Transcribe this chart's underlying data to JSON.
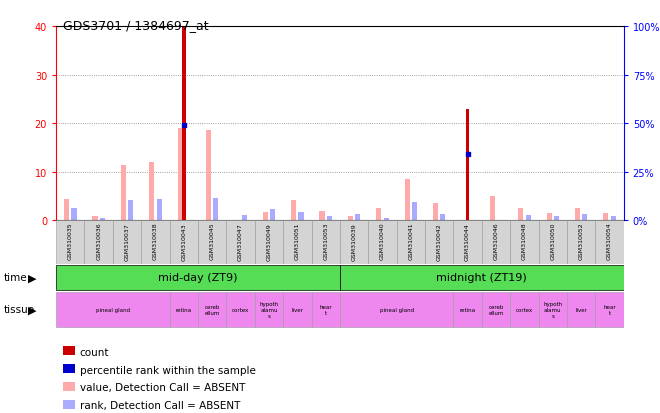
{
  "title": "GDS3701 / 1384697_at",
  "samples": [
    "GSM310035",
    "GSM310036",
    "GSM310037",
    "GSM310038",
    "GSM310043",
    "GSM310045",
    "GSM310047",
    "GSM310049",
    "GSM310051",
    "GSM310053",
    "GSM310039",
    "GSM310040",
    "GSM310041",
    "GSM310042",
    "GSM310044",
    "GSM310046",
    "GSM310048",
    "GSM310050",
    "GSM310052",
    "GSM310054"
  ],
  "count": [
    0,
    0,
    0,
    0,
    40,
    0,
    0,
    0,
    0,
    0,
    0,
    0,
    0,
    0,
    23,
    0,
    0,
    0,
    0,
    0
  ],
  "percentile_rank": [
    0,
    0,
    0,
    0,
    49,
    0,
    0,
    0,
    0,
    0,
    0,
    0,
    0,
    0,
    34,
    0,
    0,
    0,
    0,
    0
  ],
  "value_absent": [
    4.5,
    1.0,
    11.5,
    12.0,
    19.0,
    18.5,
    0,
    1.8,
    4.2,
    2.0,
    1.0,
    2.5,
    8.5,
    3.5,
    0,
    5.0,
    2.5,
    1.5,
    2.5,
    1.5
  ],
  "rank_absent": [
    6.5,
    1.5,
    10.5,
    11.0,
    0,
    11.5,
    3.0,
    6.0,
    4.5,
    2.5,
    3.5,
    1.5,
    9.5,
    3.5,
    0,
    0,
    3.0,
    2.5,
    3.5,
    2.5
  ],
  "ylim_left": [
    0,
    40
  ],
  "ylim_right": [
    0,
    100
  ],
  "yticks_left": [
    0,
    10,
    20,
    30,
    40
  ],
  "yticks_right": [
    0,
    25,
    50,
    75,
    100
  ],
  "count_color": "#cc0000",
  "rank_color": "#0000cc",
  "value_absent_color": "#ffaaaa",
  "rank_absent_color": "#aaaaff",
  "tissue_defs": [
    [
      0,
      4,
      "pineal gland"
    ],
    [
      4,
      5,
      "retina"
    ],
    [
      5,
      6,
      "cereb\nellum"
    ],
    [
      6,
      7,
      "cortex"
    ],
    [
      7,
      8,
      "hypoth\nalamu\ns"
    ],
    [
      8,
      9,
      "liver"
    ],
    [
      9,
      10,
      "hear\nt"
    ],
    [
      10,
      14,
      "pineal gland"
    ],
    [
      14,
      15,
      "retina"
    ],
    [
      15,
      16,
      "cereb\nellum"
    ],
    [
      16,
      17,
      "cortex"
    ],
    [
      17,
      18,
      "hypoth\nalamu\ns"
    ],
    [
      18,
      19,
      "liver"
    ],
    [
      19,
      20,
      "hear\nt"
    ]
  ]
}
